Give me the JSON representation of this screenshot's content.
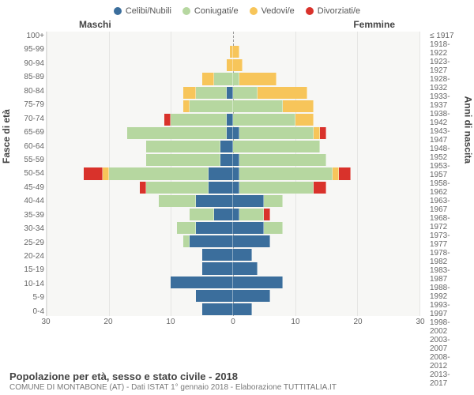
{
  "legend": [
    {
      "label": "Celibi/Nubili",
      "color": "#3b6e9c"
    },
    {
      "label": "Coniugati/e",
      "color": "#b6d7a0"
    },
    {
      "label": "Vedovi/e",
      "color": "#f7c55a"
    },
    {
      "label": "Divorziati/e",
      "color": "#d9322b"
    }
  ],
  "header_left": "Maschi",
  "header_right": "Femmine",
  "y_left_title": "Fasce di età",
  "y_right_title": "Anni di nascita",
  "age_labels": [
    "100+",
    "95-99",
    "90-94",
    "85-89",
    "80-84",
    "75-79",
    "70-74",
    "65-69",
    "60-64",
    "55-59",
    "50-54",
    "45-49",
    "40-44",
    "35-39",
    "30-34",
    "25-29",
    "20-24",
    "15-19",
    "10-14",
    "5-9",
    "0-4"
  ],
  "birth_labels": [
    "≤ 1917",
    "1918-1922",
    "1923-1927",
    "1928-1932",
    "1933-1937",
    "1938-1942",
    "1943-1947",
    "1948-1952",
    "1953-1957",
    "1958-1962",
    "1963-1967",
    "1968-1972",
    "1973-1977",
    "1978-1982",
    "1983-1987",
    "1988-1992",
    "1993-1997",
    "1998-2002",
    "2003-2007",
    "2008-2012",
    "2013-2017"
  ],
  "x_ticks": [
    30,
    20,
    10,
    0,
    10,
    20,
    30
  ],
  "x_max": 30,
  "rows": [
    {
      "male": [
        0,
        0,
        0,
        0
      ],
      "female": [
        0,
        0,
        0,
        0
      ]
    },
    {
      "male": [
        0,
        0,
        0.5,
        0
      ],
      "female": [
        0,
        0,
        1,
        0
      ]
    },
    {
      "male": [
        0,
        0,
        1,
        0
      ],
      "female": [
        0,
        0,
        1.5,
        0
      ]
    },
    {
      "male": [
        0,
        3,
        2,
        0
      ],
      "female": [
        0,
        1,
        6,
        0
      ]
    },
    {
      "male": [
        1,
        5,
        2,
        0
      ],
      "female": [
        0,
        4,
        8,
        0
      ]
    },
    {
      "male": [
        0,
        7,
        1,
        0
      ],
      "female": [
        0,
        8,
        5,
        0
      ]
    },
    {
      "male": [
        1,
        9,
        0,
        1
      ],
      "female": [
        0,
        10,
        3,
        0
      ]
    },
    {
      "male": [
        1,
        16,
        0,
        0
      ],
      "female": [
        1,
        12,
        1,
        1
      ]
    },
    {
      "male": [
        2,
        12,
        0,
        0
      ],
      "female": [
        0,
        14,
        0,
        0
      ]
    },
    {
      "male": [
        2,
        12,
        0,
        0
      ],
      "female": [
        1,
        14,
        0,
        0
      ]
    },
    {
      "male": [
        4,
        16,
        1,
        3
      ],
      "female": [
        1,
        15,
        1,
        2
      ]
    },
    {
      "male": [
        4,
        10,
        0,
        1
      ],
      "female": [
        1,
        12,
        0,
        2
      ]
    },
    {
      "male": [
        6,
        6,
        0,
        0
      ],
      "female": [
        5,
        3,
        0,
        0
      ]
    },
    {
      "male": [
        3,
        4,
        0,
        0
      ],
      "female": [
        1,
        4,
        0,
        1
      ]
    },
    {
      "male": [
        6,
        3,
        0,
        0
      ],
      "female": [
        5,
        3,
        0,
        0
      ]
    },
    {
      "male": [
        7,
        1,
        0,
        0
      ],
      "female": [
        6,
        0,
        0,
        0
      ]
    },
    {
      "male": [
        5,
        0,
        0,
        0
      ],
      "female": [
        3,
        0,
        0,
        0
      ]
    },
    {
      "male": [
        5,
        0,
        0,
        0
      ],
      "female": [
        4,
        0,
        0,
        0
      ]
    },
    {
      "male": [
        10,
        0,
        0,
        0
      ],
      "female": [
        8,
        0,
        0,
        0
      ]
    },
    {
      "male": [
        6,
        0,
        0,
        0
      ],
      "female": [
        6,
        0,
        0,
        0
      ]
    },
    {
      "male": [
        5,
        0,
        0,
        0
      ],
      "female": [
        3,
        0,
        0,
        0
      ]
    }
  ],
  "colors": {
    "celibi": "#3b6e9c",
    "coniugati": "#b6d7a0",
    "vedovi": "#f7c55a",
    "divorziati": "#d9322b"
  },
  "footer_title": "Popolazione per età, sesso e stato civile - 2018",
  "footer_sub": "COMUNE DI MONTABONE (AT) - Dati ISTAT 1° gennaio 2018 - Elaborazione TUTTITALIA.IT"
}
